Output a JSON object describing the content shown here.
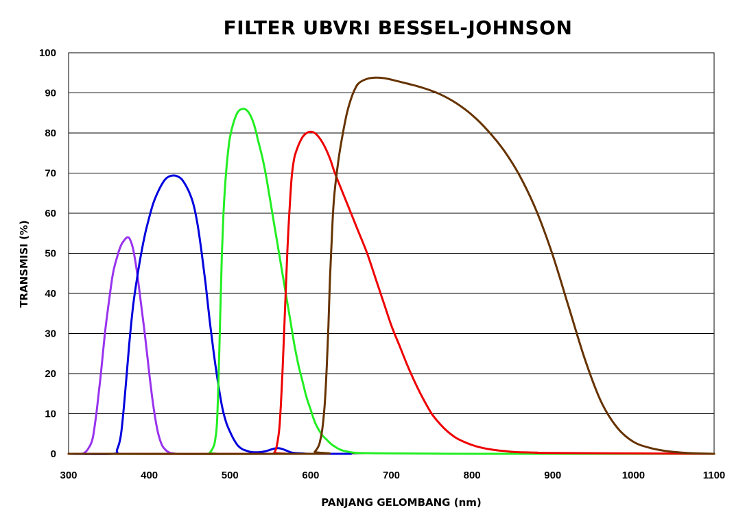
{
  "chart_data": {
    "type": "line",
    "title": "FILTER UBVRI BESSEL-JOHNSON",
    "xlabel": "PANJANG GELOMBANG (nm)",
    "ylabel": "TRANSMISI (%)",
    "xlim": [
      300,
      1100
    ],
    "ylim": [
      0,
      100
    ],
    "xticks": [
      300,
      400,
      500,
      600,
      700,
      800,
      900,
      1000,
      1100
    ],
    "yticks": [
      0,
      10,
      20,
      30,
      40,
      50,
      60,
      70,
      80,
      90,
      100
    ],
    "grid": "horizontal",
    "legend": "none",
    "series": [
      {
        "color": "#9933ee",
        "x": [
          300,
          315,
          320,
          325,
          330,
          335,
          340,
          345,
          350,
          355,
          360,
          365,
          370,
          373,
          376,
          380,
          385,
          390,
          395,
          400,
          405,
          410,
          415,
          420,
          425,
          430,
          440,
          500
        ],
        "y": [
          0,
          0,
          0.3,
          1.5,
          4,
          11,
          20,
          30,
          38,
          45,
          49,
          52,
          53.5,
          54,
          53.5,
          51,
          45,
          37,
          29,
          20,
          12,
          6,
          2.5,
          1,
          0.3,
          0.1,
          0,
          0
        ]
      },
      {
        "color": "#0000dd",
        "x": [
          300,
          355,
          360,
          365,
          370,
          375,
          380,
          385,
          390,
          395,
          400,
          405,
          410,
          415,
          420,
          425,
          430,
          435,
          440,
          445,
          450,
          455,
          460,
          465,
          470,
          475,
          480,
          485,
          490,
          495,
          500,
          505,
          510,
          515,
          520,
          525,
          530,
          535,
          540,
          545,
          550,
          555,
          560,
          565,
          570,
          575,
          580,
          590,
          600,
          650
        ],
        "y": [
          0,
          0,
          1,
          5,
          15,
          27,
          37,
          44,
          50,
          55,
          59,
          62.5,
          65,
          67,
          68.5,
          69.2,
          69.4,
          69.2,
          68.5,
          67,
          65,
          62,
          57,
          50,
          42,
          33,
          25,
          18,
          12,
          8,
          5.5,
          3.5,
          2,
          1.2,
          0.8,
          0.5,
          0.4,
          0.4,
          0.5,
          0.7,
          1,
          1.3,
          1.4,
          1.2,
          0.8,
          0.4,
          0.2,
          0.1,
          0,
          0
        ]
      },
      {
        "color": "#22ee22",
        "x": [
          300,
          470,
          475,
          480,
          482,
          484,
          486,
          488,
          490,
          492,
          494,
          496,
          498,
          500,
          505,
          510,
          515,
          520,
          525,
          530,
          535,
          540,
          545,
          550,
          555,
          560,
          565,
          570,
          575,
          580,
          585,
          590,
          595,
          600,
          605,
          610,
          615,
          620,
          625,
          630,
          635,
          640,
          650,
          660,
          700,
          800,
          900,
          1100
        ],
        "y": [
          0,
          0,
          0.3,
          2,
          4,
          8,
          20,
          35,
          50,
          60,
          67,
          72,
          76,
          79,
          83,
          85.3,
          86,
          85.8,
          84.5,
          82,
          78,
          74,
          69,
          63,
          57,
          51,
          45,
          39,
          33,
          27,
          22,
          18,
          14,
          11,
          8,
          6,
          4.5,
          3.5,
          2.5,
          1.8,
          1.2,
          0.8,
          0.4,
          0.2,
          0.1,
          0,
          0,
          0
        ]
      },
      {
        "color": "#ee0000",
        "x": [
          300,
          550,
          555,
          558,
          561,
          563,
          565,
          567,
          569,
          571,
          573,
          575,
          577,
          580,
          585,
          590,
          595,
          600,
          605,
          610,
          615,
          620,
          625,
          630,
          640,
          650,
          660,
          670,
          680,
          690,
          700,
          710,
          720,
          730,
          740,
          750,
          760,
          770,
          780,
          790,
          800,
          810,
          820,
          830,
          840,
          850,
          860,
          880,
          900,
          1100
        ],
        "y": [
          0,
          0,
          0.3,
          2,
          6,
          12,
          20,
          30,
          40,
          50,
          58,
          65,
          70,
          74,
          77,
          79,
          80,
          80.3,
          80,
          79,
          77.5,
          75.5,
          73,
          70,
          65,
          60,
          55,
          50,
          44,
          38,
          32,
          27,
          22,
          17.5,
          13.5,
          10,
          7.5,
          5.5,
          4,
          3,
          2.2,
          1.6,
          1.2,
          0.9,
          0.7,
          0.5,
          0.4,
          0.3,
          0.2,
          0
        ]
      },
      {
        "color": "#663300",
        "x": [
          300,
          600,
          605,
          610,
          612,
          614,
          616,
          618,
          620,
          622,
          624,
          626,
          628,
          630,
          635,
          640,
          645,
          650,
          655,
          660,
          670,
          680,
          690,
          700,
          720,
          740,
          760,
          780,
          800,
          820,
          840,
          860,
          880,
          900,
          920,
          940,
          960,
          980,
          1000,
          1020,
          1040,
          1060,
          1080,
          1100
        ],
        "y": [
          0,
          0,
          0.5,
          2,
          3.5,
          5.5,
          9,
          14,
          22,
          32,
          44,
          53,
          61,
          66,
          74,
          80,
          85,
          88.5,
          91,
          92.5,
          93.5,
          93.8,
          93.7,
          93.3,
          92.3,
          91.2,
          89.7,
          87.5,
          84.5,
          80.5,
          75.5,
          69,
          60.5,
          49.5,
          36.5,
          23.5,
          13,
          6.5,
          3,
          1.5,
          0.7,
          0.3,
          0.1,
          0
        ]
      }
    ]
  }
}
